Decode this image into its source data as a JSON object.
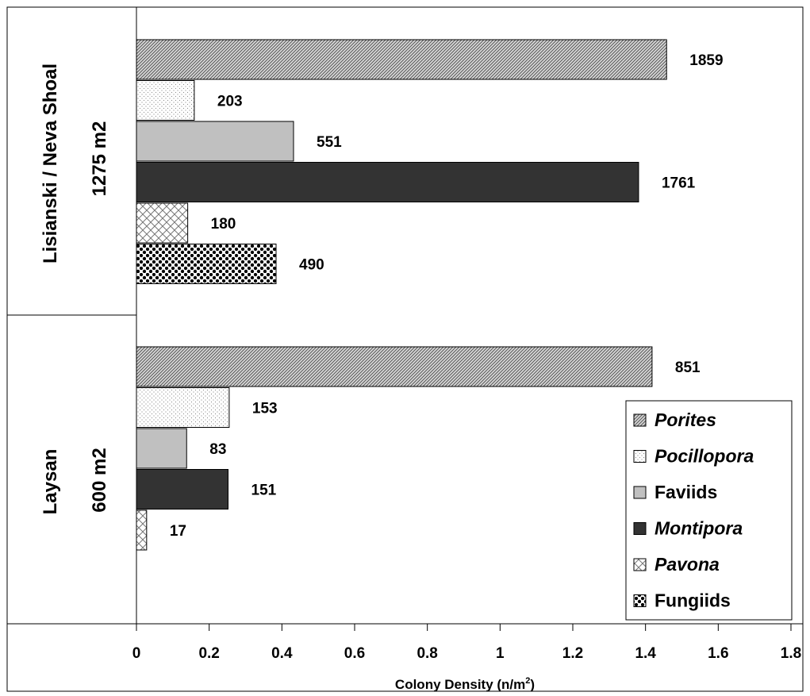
{
  "chart_data": {
    "type": "bar",
    "orientation": "horizontal",
    "xlabel_main": "Colony Density (n/m",
    "xlabel_sup": "2",
    "xlabel_close": ")",
    "xlim": [
      0,
      1.8
    ],
    "xticks": [
      "0",
      "0.2",
      "0.4",
      "0.6",
      "0.8",
      "1",
      "1.2",
      "1.4",
      "1.6",
      "1.8"
    ],
    "grid": false,
    "legend_position": "bottom-right",
    "groups": [
      {
        "site": "Lisianski / Neva Shoal",
        "area": "1275 m2",
        "bars": [
          {
            "series": "Porites",
            "value": 1.458,
            "label": "1859"
          },
          {
            "series": "Pocillopora",
            "value": 0.159,
            "label": "203"
          },
          {
            "series": "Faviids",
            "value": 0.432,
            "label": "551"
          },
          {
            "series": "Montipora",
            "value": 1.381,
            "label": "1761"
          },
          {
            "series": "Pavona",
            "value": 0.141,
            "label": "180"
          },
          {
            "series": "Fungiids",
            "value": 0.384,
            "label": "490"
          }
        ]
      },
      {
        "site": "Laysan",
        "area": "600 m2",
        "bars": [
          {
            "series": "Porites",
            "value": 1.418,
            "label": "851"
          },
          {
            "series": "Pocillopora",
            "value": 0.255,
            "label": "153"
          },
          {
            "series": "Faviids",
            "value": 0.138,
            "label": "83"
          },
          {
            "series": "Montipora",
            "value": 0.252,
            "label": "151"
          },
          {
            "series": "Pavona",
            "value": 0.028,
            "label": "17"
          }
        ]
      }
    ],
    "legend": [
      {
        "name": "Porites",
        "italic": true,
        "pattern": "diag"
      },
      {
        "name": "Pocillopora",
        "italic": true,
        "pattern": "dots"
      },
      {
        "name": "Faviids",
        "italic": false,
        "pattern": "gray"
      },
      {
        "name": "Montipora",
        "italic": true,
        "pattern": "dark"
      },
      {
        "name": "Pavona",
        "italic": true,
        "pattern": "cross"
      },
      {
        "name": "Fungiids",
        "italic": false,
        "pattern": "checker"
      }
    ],
    "colors": {
      "faviids": "#c0c0c0",
      "montipora": "#333333",
      "outline": "#000000"
    }
  }
}
